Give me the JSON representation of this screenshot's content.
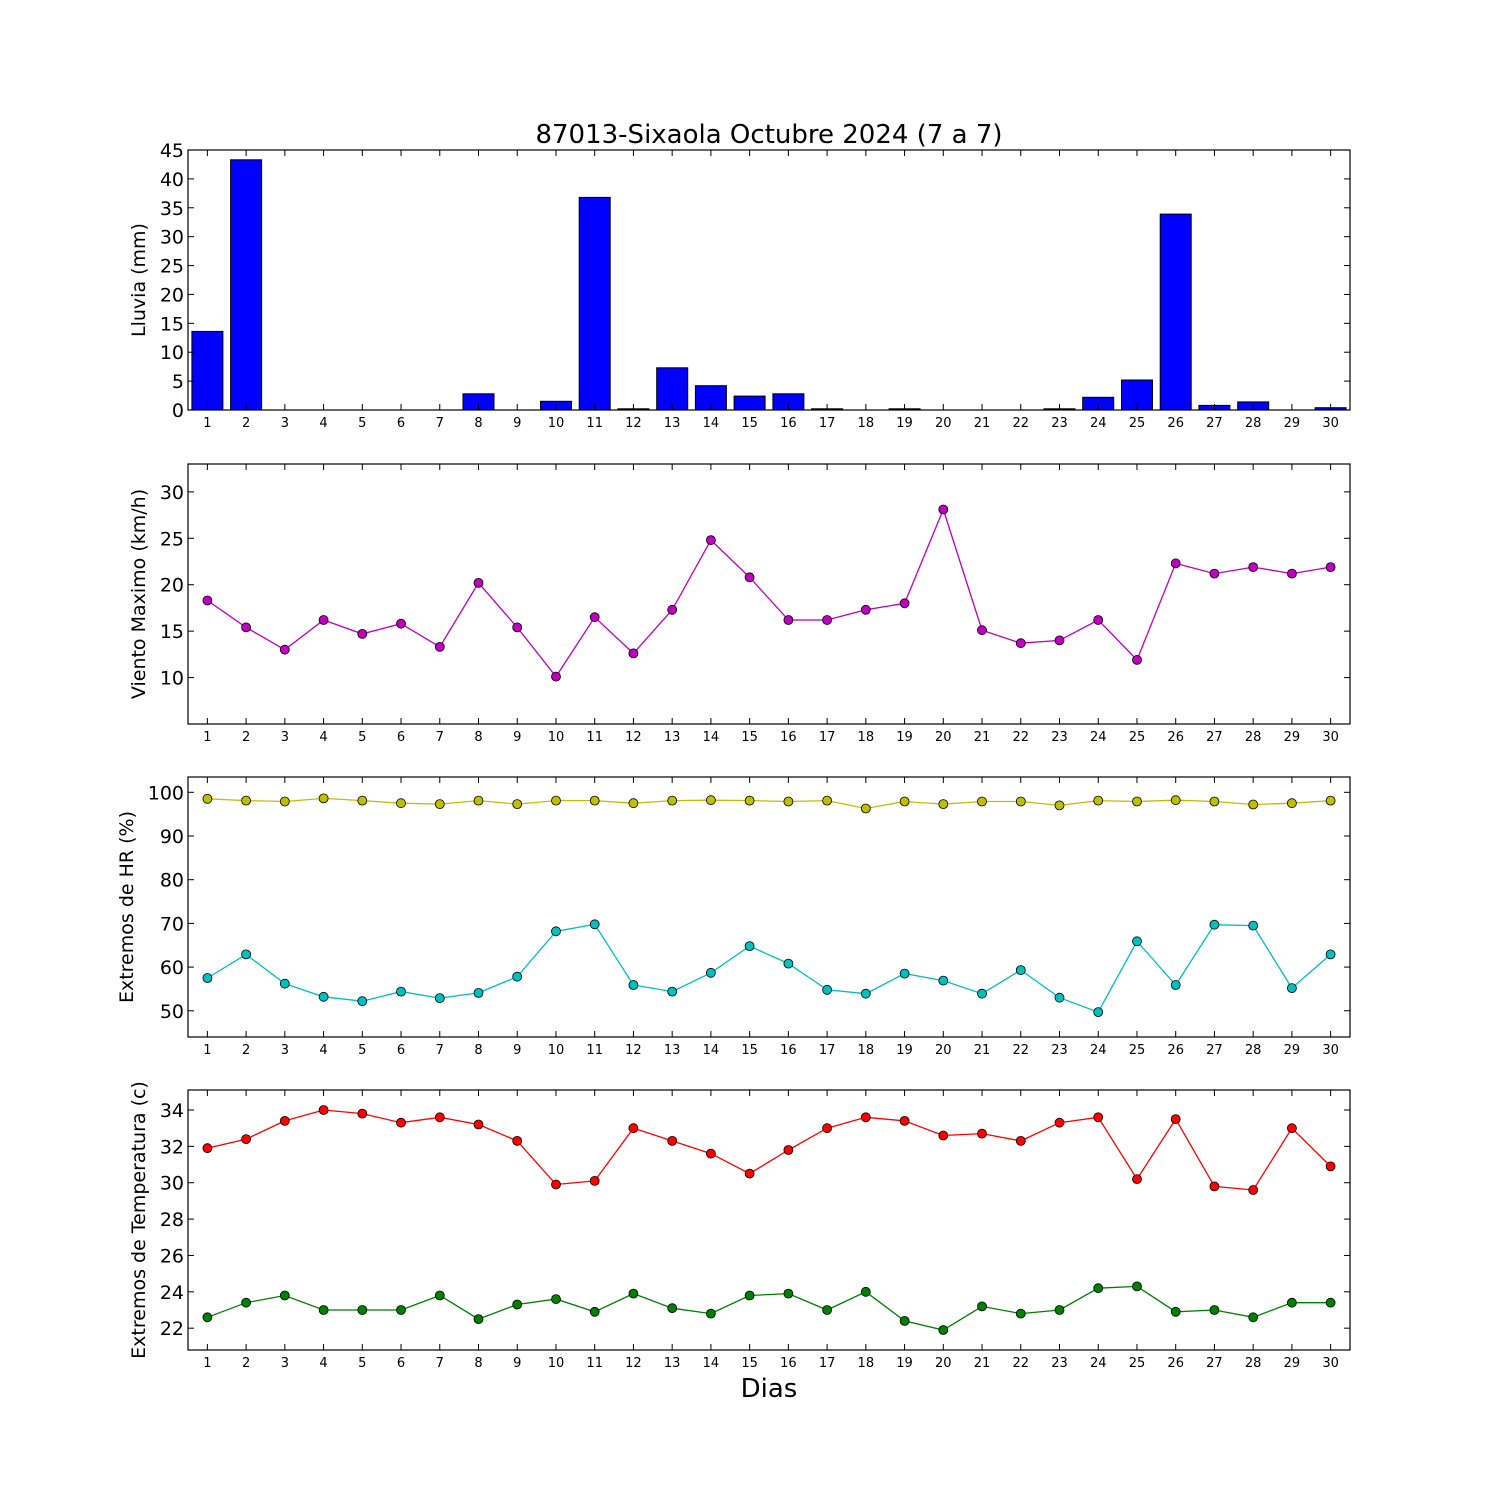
{
  "title": "87013-Sixaola Octubre 2024  (7 a 7)",
  "xlabel": "Dias",
  "colors": {
    "rain": "#0000ff",
    "wind": "#bf00bf",
    "hr_max": "#bfbf00",
    "hr_min": "#00bfbf",
    "temp_max": "#ff0000",
    "temp_min": "#008000"
  },
  "chart_data": [
    {
      "type": "bar",
      "ylabel": "Lluvia (mm)",
      "x": [
        1,
        2,
        3,
        4,
        5,
        6,
        7,
        8,
        9,
        10,
        11,
        12,
        13,
        14,
        15,
        16,
        17,
        18,
        19,
        20,
        21,
        22,
        23,
        24,
        25,
        26,
        27,
        28,
        29,
        30
      ],
      "xlim": [
        0.5,
        30.5
      ],
      "ylim": [
        0,
        45
      ],
      "yticks": [
        0,
        5,
        10,
        15,
        20,
        25,
        30,
        35,
        40,
        45
      ],
      "series": [
        {
          "values": [
            13.6,
            43.3,
            0.0,
            0.0,
            0.0,
            0.0,
            0.0,
            2.8,
            0.0,
            1.5,
            36.8,
            0.2,
            7.3,
            4.2,
            2.4,
            2.8,
            0.2,
            0.0,
            0.2,
            0.0,
            0.0,
            0.0,
            0.2,
            2.2,
            5.2,
            33.9,
            0.8,
            1.4,
            0.0,
            0.4
          ],
          "color": "#0000ff"
        }
      ]
    },
    {
      "type": "line",
      "ylabel": "Viento Maximo (km/h)",
      "x": [
        1,
        2,
        3,
        4,
        5,
        6,
        7,
        8,
        9,
        10,
        11,
        12,
        13,
        14,
        15,
        16,
        17,
        18,
        19,
        20,
        21,
        22,
        23,
        24,
        25,
        26,
        27,
        28,
        29,
        30
      ],
      "xlim": [
        0.5,
        30.5
      ],
      "ylim": [
        5,
        33
      ],
      "yticks": [
        10,
        15,
        20,
        25,
        30
      ],
      "series": [
        {
          "values": [
            18.3,
            15.4,
            13.0,
            16.2,
            14.7,
            15.8,
            13.3,
            20.2,
            15.4,
            10.1,
            16.5,
            12.6,
            17.3,
            24.8,
            20.8,
            16.2,
            16.2,
            17.3,
            18.0,
            28.1,
            15.1,
            13.7,
            14.0,
            16.2,
            11.9,
            22.3,
            21.2,
            21.9,
            21.2,
            21.9
          ],
          "color": "#bf00bf"
        }
      ]
    },
    {
      "type": "line",
      "ylabel": "Extremos de HR (%)",
      "x": [
        1,
        2,
        3,
        4,
        5,
        6,
        7,
        8,
        9,
        10,
        11,
        12,
        13,
        14,
        15,
        16,
        17,
        18,
        19,
        20,
        21,
        22,
        23,
        24,
        25,
        26,
        27,
        28,
        29,
        30
      ],
      "xlim": [
        0.5,
        30.5
      ],
      "ylim": [
        44,
        103.5
      ],
      "yticks": [
        50,
        60,
        70,
        80,
        90,
        100
      ],
      "series": [
        {
          "values": [
            98.5,
            98.1,
            97.9,
            98.6,
            98.1,
            97.5,
            97.3,
            98.1,
            97.3,
            98.1,
            98.1,
            97.5,
            98.1,
            98.2,
            98.1,
            97.9,
            98.1,
            96.3,
            97.9,
            97.3,
            97.9,
            97.9,
            97.0,
            98.1,
            97.9,
            98.2,
            97.9,
            97.2,
            97.5,
            98.1
          ],
          "color": "#bfbf00"
        },
        {
          "values": [
            57.5,
            62.9,
            56.2,
            53.2,
            52.2,
            54.4,
            52.9,
            54.1,
            57.8,
            68.2,
            69.8,
            55.9,
            54.4,
            58.7,
            64.8,
            60.8,
            54.8,
            53.9,
            58.5,
            56.9,
            53.9,
            59.3,
            53.0,
            49.7,
            65.9,
            55.9,
            69.7,
            69.5,
            55.2,
            62.9
          ],
          "color": "#00bfbf"
        }
      ]
    },
    {
      "type": "line",
      "ylabel": "Extremos de Temperatura (c)",
      "x": [
        1,
        2,
        3,
        4,
        5,
        6,
        7,
        8,
        9,
        10,
        11,
        12,
        13,
        14,
        15,
        16,
        17,
        18,
        19,
        20,
        21,
        22,
        23,
        24,
        25,
        26,
        27,
        28,
        29,
        30
      ],
      "xlim": [
        0.5,
        30.5
      ],
      "ylim": [
        20.8,
        35.1
      ],
      "yticks": [
        22,
        24,
        26,
        28,
        30,
        32,
        34
      ],
      "series": [
        {
          "values": [
            31.9,
            32.4,
            33.4,
            34.0,
            33.8,
            33.3,
            33.6,
            33.2,
            32.3,
            29.9,
            30.1,
            33.0,
            32.3,
            31.6,
            30.5,
            31.8,
            33.0,
            33.6,
            33.4,
            32.6,
            32.7,
            32.3,
            33.3,
            33.6,
            30.2,
            33.5,
            29.8,
            29.6,
            33.0,
            30.9
          ],
          "color": "#ff0000"
        },
        {
          "values": [
            22.6,
            23.4,
            23.8,
            23.0,
            23.0,
            23.0,
            23.8,
            22.5,
            23.3,
            23.6,
            22.9,
            23.9,
            23.1,
            22.8,
            23.8,
            23.9,
            23.0,
            24.0,
            22.4,
            21.9,
            23.2,
            22.8,
            23.0,
            24.2,
            24.3,
            22.9,
            23.0,
            22.6,
            23.4,
            23.4
          ],
          "color": "#008000"
        }
      ]
    }
  ]
}
